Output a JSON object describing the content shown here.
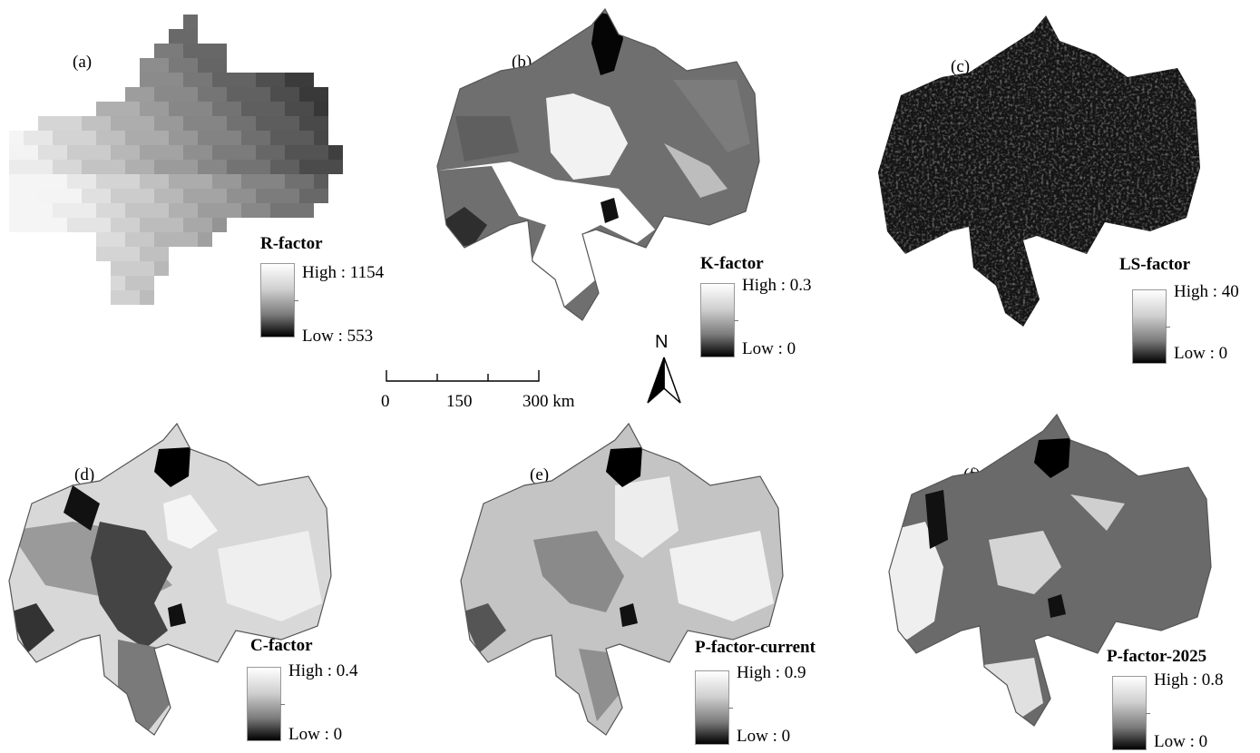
{
  "panels": [
    {
      "letter": "(a)",
      "title": "R-factor",
      "high": "High : 1154",
      "low": "Low : 553"
    },
    {
      "letter": "(b)",
      "title": "K-factor",
      "high": "High : 0.3",
      "low": "Low : 0"
    },
    {
      "letter": "(c)",
      "title": "LS-factor",
      "high": "High : 40",
      "low": "Low : 0"
    },
    {
      "letter": "(d)",
      "title": "C-factor",
      "high": "High : 0.4",
      "low": "Low : 0"
    },
    {
      "letter": "(e)",
      "title": "P-factor-current",
      "high": "High : 0.9",
      "low": "Low : 0"
    },
    {
      "letter": "(f)",
      "title": "P-factor-2025",
      "high": "High : 0.8",
      "low": "Low : 0"
    }
  ],
  "scalebar": {
    "ticks": [
      "0",
      "150",
      "300 km"
    ]
  },
  "north": "N",
  "colors": {
    "background": "#ffffff",
    "map_dark": "#2a2a2a",
    "map_mid": "#707070",
    "map_light": "#d9d9d9"
  }
}
